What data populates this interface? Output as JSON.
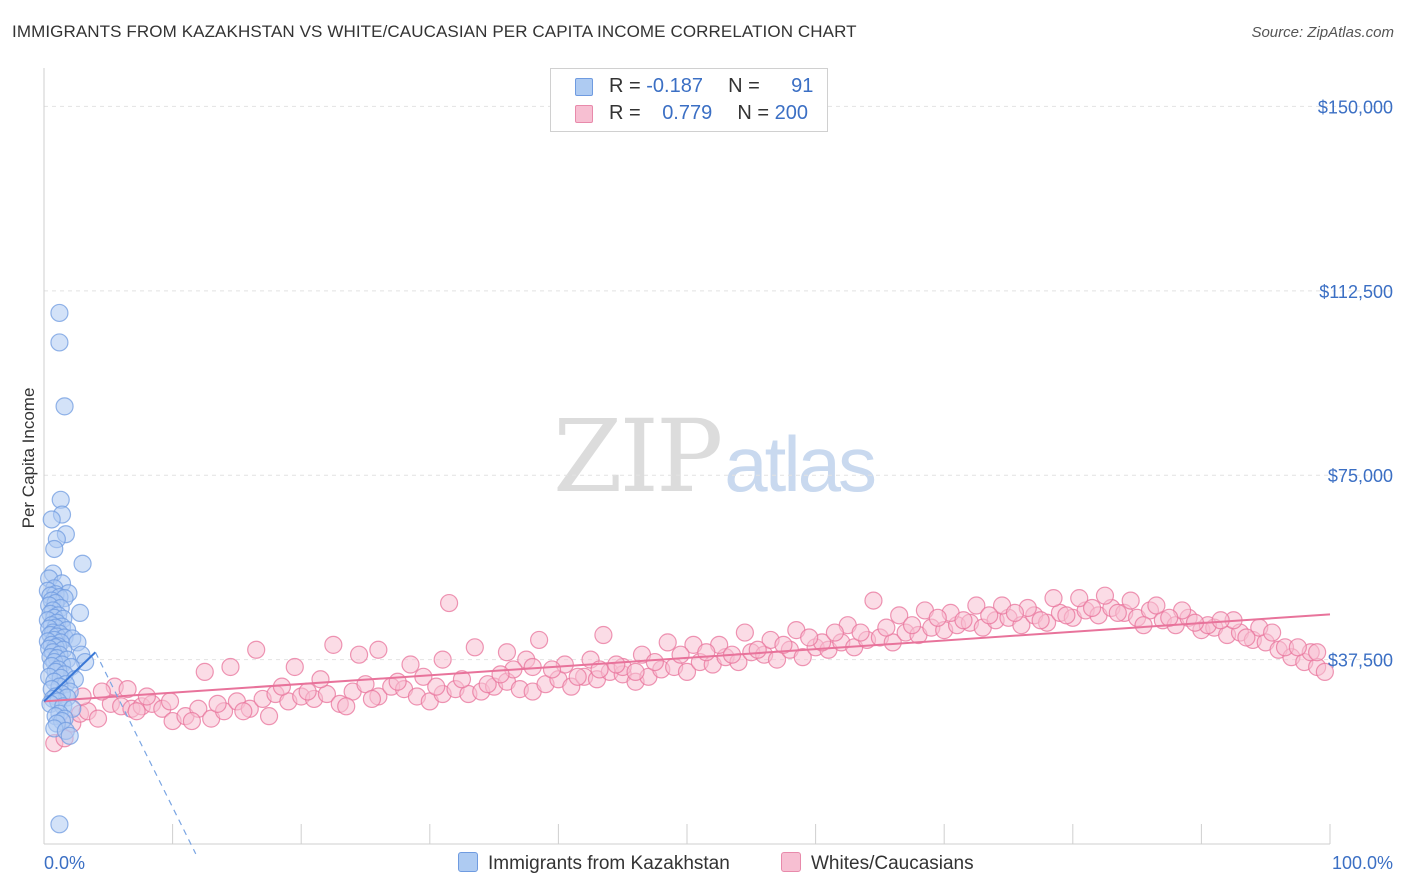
{
  "title": "IMMIGRANTS FROM KAZAKHSTAN VS WHITE/CAUCASIAN PER CAPITA INCOME CORRELATION CHART",
  "source": "Source: ZipAtlas.com",
  "watermark": {
    "zip": "ZIP",
    "atlas": "atlas"
  },
  "legend": {
    "rows": [
      {
        "r_label": "R =",
        "r_value": "-0.187",
        "n_label": "N =",
        "n_value": "91",
        "color": "#aecbf2",
        "border": "#6f9be0"
      },
      {
        "r_label": "R =",
        "r_value": "0.779",
        "n_label": "N =",
        "n_value": "200",
        "color": "#f7bfd2",
        "border": "#e88aab"
      }
    ]
  },
  "bottom_legend": [
    {
      "label": "Immigrants from Kazakhstan",
      "color": "#aecbf2",
      "border": "#6f9be0"
    },
    {
      "label": "Whites/Caucasians",
      "color": "#f7bfd2",
      "border": "#e88aab"
    }
  ],
  "chart_data": {
    "type": "scatter",
    "title": "IMMIGRANTS FROM KAZAKHSTAN VS WHITE/CAUCASIAN PER CAPITA INCOME CORRELATION CHART",
    "xlabel": "",
    "ylabel": "Per Capita Income",
    "xlim": [
      0,
      100
    ],
    "ylim": [
      0,
      157000
    ],
    "x_tick_labels": [
      "0.0%",
      "100.0%"
    ],
    "y_ticks": [
      37500,
      75000,
      112500,
      150000
    ],
    "y_tick_labels": [
      "$37,500",
      "$75,000",
      "$112,500",
      "$150,000"
    ],
    "grid": true,
    "legend_position": "top-center",
    "series": [
      {
        "name": "Immigrants from Kazakhstan",
        "color": "#6f9be0",
        "fill": "#aecbf2",
        "trend": {
          "x0": 0,
          "y0": 29000,
          "x1": 4,
          "y1": 39000,
          "extended_dashed_to": [
            11.8,
            -2000
          ]
        },
        "points": [
          [
            1.2,
            108000
          ],
          [
            1.2,
            102000
          ],
          [
            1.6,
            89000
          ],
          [
            1.3,
            70000
          ],
          [
            1.4,
            67000
          ],
          [
            0.6,
            66000
          ],
          [
            1.7,
            63000
          ],
          [
            1.0,
            62000
          ],
          [
            0.8,
            60000
          ],
          [
            3.0,
            57000
          ],
          [
            0.7,
            55000
          ],
          [
            0.4,
            54000
          ],
          [
            1.4,
            53000
          ],
          [
            0.8,
            52000
          ],
          [
            0.3,
            51500
          ],
          [
            1.9,
            51000
          ],
          [
            0.9,
            50800
          ],
          [
            0.5,
            50500
          ],
          [
            1.2,
            50200
          ],
          [
            1.6,
            50000
          ],
          [
            0.6,
            49500
          ],
          [
            0.9,
            49000
          ],
          [
            0.4,
            48500
          ],
          [
            1.3,
            48000
          ],
          [
            0.7,
            47500
          ],
          [
            2.8,
            47000
          ],
          [
            0.5,
            46800
          ],
          [
            1.1,
            46500
          ],
          [
            0.8,
            46000
          ],
          [
            1.5,
            45800
          ],
          [
            0.3,
            45500
          ],
          [
            1.0,
            45000
          ],
          [
            0.6,
            44500
          ],
          [
            1.4,
            44200
          ],
          [
            0.9,
            44000
          ],
          [
            0.4,
            43800
          ],
          [
            1.8,
            43500
          ],
          [
            0.7,
            43000
          ],
          [
            1.2,
            42800
          ],
          [
            0.5,
            42500
          ],
          [
            1.0,
            42200
          ],
          [
            1.6,
            42000
          ],
          [
            2.2,
            41800
          ],
          [
            0.8,
            41500
          ],
          [
            0.3,
            41200
          ],
          [
            1.3,
            41000
          ],
          [
            2.6,
            41000
          ],
          [
            0.6,
            40500
          ],
          [
            1.1,
            40200
          ],
          [
            0.9,
            40000
          ],
          [
            0.4,
            39700
          ],
          [
            1.5,
            39500
          ],
          [
            0.7,
            39000
          ],
          [
            1.2,
            38500
          ],
          [
            2.9,
            38500
          ],
          [
            0.5,
            38000
          ],
          [
            1.0,
            37800
          ],
          [
            1.8,
            37500
          ],
          [
            0.8,
            37000
          ],
          [
            3.2,
            37000
          ],
          [
            1.4,
            36500
          ],
          [
            0.6,
            36200
          ],
          [
            2.1,
            36000
          ],
          [
            1.1,
            35500
          ],
          [
            0.9,
            35000
          ],
          [
            1.6,
            34500
          ],
          [
            0.4,
            34000
          ],
          [
            1.3,
            33800
          ],
          [
            2.4,
            33500
          ],
          [
            0.8,
            33000
          ],
          [
            1.7,
            32500
          ],
          [
            1.2,
            32000
          ],
          [
            0.6,
            31500
          ],
          [
            2.0,
            31000
          ],
          [
            1.4,
            30500
          ],
          [
            0.9,
            30000
          ],
          [
            1.8,
            29800
          ],
          [
            0.7,
            29500
          ],
          [
            1.1,
            29000
          ],
          [
            0.5,
            28500
          ],
          [
            1.5,
            28000
          ],
          [
            2.2,
            27500
          ],
          [
            1.2,
            26500
          ],
          [
            0.9,
            26000
          ],
          [
            1.6,
            25500
          ],
          [
            1.4,
            25000
          ],
          [
            1.0,
            24500
          ],
          [
            0.8,
            23500
          ],
          [
            1.7,
            23000
          ],
          [
            2.0,
            22000
          ],
          [
            1.2,
            4000
          ]
        ]
      },
      {
        "name": "Whites/Caucasians",
        "color": "#e8739b",
        "fill": "#f7bfd2",
        "trend": {
          "x0": 0,
          "y0": 29000,
          "x1": 100,
          "y1": 46700
        },
        "points": [
          [
            0.8,
            20500
          ],
          [
            1.6,
            21500
          ],
          [
            2.2,
            24500
          ],
          [
            2.8,
            26500
          ],
          [
            3.4,
            27000
          ],
          [
            4.2,
            25500
          ],
          [
            5.2,
            28500
          ],
          [
            6.0,
            28000
          ],
          [
            6.8,
            27500
          ],
          [
            7.6,
            28000
          ],
          [
            8.4,
            28500
          ],
          [
            9.2,
            27500
          ],
          [
            10.0,
            25000
          ],
          [
            11.0,
            26000
          ],
          [
            12.0,
            27500
          ],
          [
            13.0,
            25500
          ],
          [
            14.0,
            27000
          ],
          [
            15.0,
            29000
          ],
          [
            16.0,
            27500
          ],
          [
            17.0,
            29500
          ],
          [
            18.0,
            30500
          ],
          [
            19.0,
            29000
          ],
          [
            20.0,
            30000
          ],
          [
            21.0,
            29500
          ],
          [
            22.0,
            30500
          ],
          [
            23.0,
            28500
          ],
          [
            24.0,
            31000
          ],
          [
            25.0,
            32500
          ],
          [
            26.0,
            30000
          ],
          [
            27.0,
            32000
          ],
          [
            28.0,
            31500
          ],
          [
            29.0,
            30000
          ],
          [
            30.0,
            29000
          ],
          [
            31.0,
            30500
          ],
          [
            32.0,
            31500
          ],
          [
            33.0,
            30500
          ],
          [
            34.0,
            31000
          ],
          [
            35.0,
            32000
          ],
          [
            36.0,
            33000
          ],
          [
            37.0,
            31500
          ],
          [
            38.0,
            31000
          ],
          [
            39.0,
            32500
          ],
          [
            40.0,
            33500
          ],
          [
            41.0,
            32000
          ],
          [
            42.0,
            34000
          ],
          [
            43.0,
            33500
          ],
          [
            44.0,
            35000
          ],
          [
            45.0,
            34500
          ],
          [
            46.0,
            33000
          ],
          [
            47.0,
            34000
          ],
          [
            48.0,
            35500
          ],
          [
            49.0,
            36000
          ],
          [
            50.0,
            35000
          ],
          [
            51.0,
            37000
          ],
          [
            52.0,
            36500
          ],
          [
            53.0,
            38000
          ],
          [
            54.0,
            37000
          ],
          [
            55.0,
            39000
          ],
          [
            56.0,
            38500
          ],
          [
            57.0,
            37500
          ],
          [
            58.0,
            39500
          ],
          [
            59.0,
            38000
          ],
          [
            60.0,
            40000
          ],
          [
            61.0,
            39500
          ],
          [
            62.0,
            41000
          ],
          [
            63.0,
            40000
          ],
          [
            64.0,
            41500
          ],
          [
            65.0,
            42000
          ],
          [
            66.0,
            41000
          ],
          [
            67.0,
            43000
          ],
          [
            68.0,
            42500
          ],
          [
            69.0,
            44000
          ],
          [
            70.0,
            43500
          ],
          [
            71.0,
            44500
          ],
          [
            72.0,
            45000
          ],
          [
            73.0,
            44000
          ],
          [
            74.0,
            45500
          ],
          [
            75.0,
            46000
          ],
          [
            76.0,
            44500
          ],
          [
            77.0,
            46500
          ],
          [
            78.0,
            45000
          ],
          [
            79.0,
            47000
          ],
          [
            80.0,
            46000
          ],
          [
            81.0,
            47500
          ],
          [
            82.0,
            46500
          ],
          [
            83.0,
            48000
          ],
          [
            84.0,
            47000
          ],
          [
            85.0,
            46000
          ],
          [
            86.0,
            47500
          ],
          [
            87.0,
            45500
          ],
          [
            88.0,
            44500
          ],
          [
            89.0,
            46000
          ],
          [
            90.0,
            43500
          ],
          [
            91.0,
            44000
          ],
          [
            92.0,
            42500
          ],
          [
            93.0,
            43000
          ],
          [
            94.0,
            41500
          ],
          [
            95.0,
            41000
          ],
          [
            96.0,
            39500
          ],
          [
            97.0,
            38000
          ],
          [
            98.0,
            37000
          ],
          [
            99.0,
            36000
          ],
          [
            99.6,
            35000
          ],
          [
            5.5,
            32000
          ],
          [
            8.0,
            30000
          ],
          [
            12.5,
            35000
          ],
          [
            14.5,
            36000
          ],
          [
            16.5,
            39500
          ],
          [
            19.5,
            36000
          ],
          [
            22.5,
            40500
          ],
          [
            24.5,
            38500
          ],
          [
            26.0,
            39500
          ],
          [
            28.5,
            36500
          ],
          [
            31.0,
            37500
          ],
          [
            33.5,
            40000
          ],
          [
            36.0,
            39000
          ],
          [
            38.5,
            41500
          ],
          [
            31.5,
            49000
          ],
          [
            37.5,
            37500
          ],
          [
            40.5,
            36500
          ],
          [
            43.5,
            42500
          ],
          [
            46.5,
            38500
          ],
          [
            48.5,
            41000
          ],
          [
            50.5,
            40500
          ],
          [
            52.5,
            40500
          ],
          [
            54.5,
            43000
          ],
          [
            56.5,
            41500
          ],
          [
            58.5,
            43500
          ],
          [
            60.5,
            41000
          ],
          [
            62.5,
            44500
          ],
          [
            64.5,
            49500
          ],
          [
            66.5,
            46500
          ],
          [
            68.5,
            47500
          ],
          [
            70.5,
            47000
          ],
          [
            72.5,
            48500
          ],
          [
            74.5,
            48500
          ],
          [
            76.5,
            48000
          ],
          [
            78.5,
            50000
          ],
          [
            80.5,
            50000
          ],
          [
            82.5,
            50500
          ],
          [
            84.5,
            49500
          ],
          [
            86.5,
            48500
          ],
          [
            88.5,
            47500
          ],
          [
            90.5,
            44500
          ],
          [
            92.5,
            45500
          ],
          [
            94.5,
            44000
          ],
          [
            96.5,
            40000
          ],
          [
            98.5,
            39000
          ],
          [
            36.5,
            35500
          ],
          [
            38.0,
            36000
          ],
          [
            42.5,
            37500
          ],
          [
            45.0,
            36000
          ],
          [
            47.5,
            37000
          ],
          [
            49.5,
            38500
          ],
          [
            51.5,
            39000
          ],
          [
            53.5,
            38500
          ],
          [
            55.5,
            39500
          ],
          [
            57.5,
            40500
          ],
          [
            59.5,
            42000
          ],
          [
            61.5,
            43000
          ],
          [
            63.5,
            43000
          ],
          [
            65.5,
            44000
          ],
          [
            67.5,
            44500
          ],
          [
            69.5,
            46000
          ],
          [
            71.5,
            45500
          ],
          [
            73.5,
            46500
          ],
          [
            75.5,
            47000
          ],
          [
            77.5,
            45500
          ],
          [
            79.5,
            46500
          ],
          [
            81.5,
            48000
          ],
          [
            83.5,
            47000
          ],
          [
            85.5,
            44500
          ],
          [
            87.5,
            46000
          ],
          [
            89.5,
            45000
          ],
          [
            91.5,
            45500
          ],
          [
            93.5,
            42000
          ],
          [
            95.5,
            43000
          ],
          [
            97.5,
            40000
          ],
          [
            99.0,
            39000
          ],
          [
            3.0,
            30000
          ],
          [
            4.5,
            31000
          ],
          [
            6.5,
            31500
          ],
          [
            7.2,
            27000
          ],
          [
            9.8,
            29000
          ],
          [
            11.5,
            25000
          ],
          [
            13.5,
            28500
          ],
          [
            15.5,
            27000
          ],
          [
            17.5,
            26000
          ],
          [
            18.5,
            32000
          ],
          [
            20.5,
            31000
          ],
          [
            21.5,
            33500
          ],
          [
            23.5,
            28000
          ],
          [
            25.5,
            29500
          ],
          [
            27.5,
            33000
          ],
          [
            29.5,
            34000
          ],
          [
            30.5,
            32000
          ],
          [
            32.5,
            33500
          ],
          [
            34.5,
            32500
          ],
          [
            35.5,
            34500
          ],
          [
            39.5,
            35500
          ],
          [
            41.5,
            34000
          ],
          [
            43.2,
            35500
          ],
          [
            44.5,
            36500
          ],
          [
            46.0,
            35000
          ]
        ]
      }
    ]
  }
}
